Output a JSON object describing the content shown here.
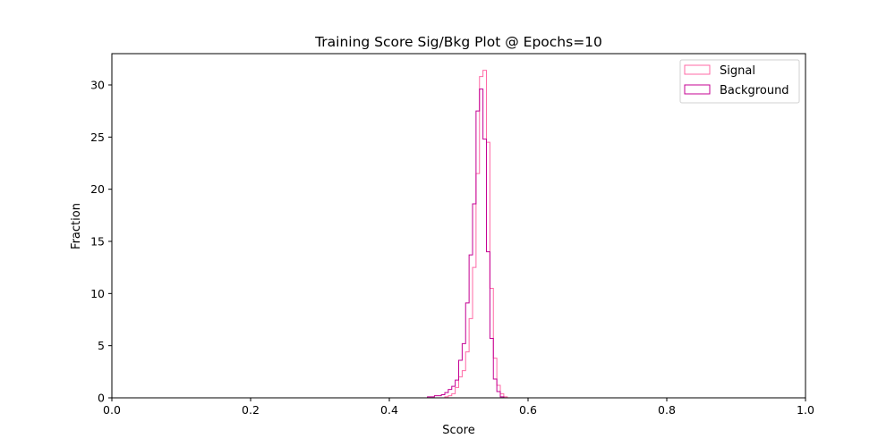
{
  "chart_data": {
    "type": "histogram",
    "title": "Training Score Sig/Bkg Plot @ Epochs=10",
    "xlabel": "Score",
    "ylabel": "Fraction",
    "xlim": [
      0.0,
      1.0
    ],
    "ylim": [
      0,
      33
    ],
    "xticks": [
      "0.0",
      "0.2",
      "0.4",
      "0.6",
      "0.8",
      "1.0"
    ],
    "xtick_values": [
      0.0,
      0.2,
      0.4,
      0.6,
      0.8,
      1.0
    ],
    "yticks": [
      "0",
      "5",
      "10",
      "15",
      "20",
      "25",
      "30"
    ],
    "ytick_values": [
      0,
      5,
      10,
      15,
      20,
      25,
      30
    ],
    "grid": false,
    "legend_position": "top-right",
    "bin_edges": [
      0.4,
      0.405,
      0.41,
      0.415,
      0.42,
      0.425,
      0.43,
      0.435,
      0.44,
      0.445,
      0.45,
      0.455,
      0.46,
      0.465,
      0.47,
      0.475,
      0.48,
      0.485,
      0.49,
      0.495,
      0.5,
      0.505,
      0.51,
      0.515,
      0.52,
      0.525,
      0.53,
      0.535,
      0.54,
      0.545,
      0.55,
      0.555,
      0.56,
      0.565,
      0.57,
      0.575
    ],
    "series": [
      {
        "name": "Signal",
        "color": "#ff69a6",
        "values": [
          0,
          0,
          0,
          0,
          0,
          0,
          0,
          0,
          0,
          0,
          0,
          0,
          0,
          0,
          0,
          0,
          0.1,
          0.2,
          0.4,
          1.0,
          2.0,
          2.6,
          4.4,
          7.6,
          12.5,
          21.5,
          30.8,
          31.4,
          24.5,
          10.5,
          3.8,
          1.2,
          0.4,
          0.1,
          0
        ]
      },
      {
        "name": "Background",
        "color": "#c40093",
        "values": [
          0,
          0,
          0,
          0,
          0,
          0,
          0,
          0,
          0,
          0,
          0,
          0.1,
          0.1,
          0.2,
          0.2,
          0.3,
          0.5,
          0.8,
          1.1,
          1.7,
          3.6,
          5.2,
          9.1,
          13.7,
          18.6,
          27.5,
          29.6,
          24.8,
          14.0,
          5.7,
          1.8,
          0.6,
          0.1,
          0,
          0
        ]
      }
    ]
  }
}
